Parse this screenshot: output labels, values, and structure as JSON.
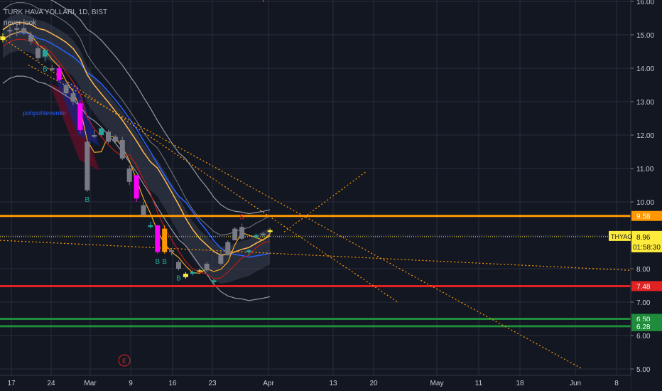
{
  "header": {
    "title": "TURK HAVA YOLLARI, 1D, BIST",
    "subtitle": "never look"
  },
  "annotation_text": "pohpohlevenkn",
  "marker_e": "E",
  "colors": {
    "background": "#131722",
    "grid": "#2a2e39",
    "up": "#26a69a",
    "down": "#787b86",
    "magenta": "#ff00ff",
    "orange": "#ff9800",
    "red_line": "#e02222",
    "green_line": "#1e8c3a",
    "yellow": "#ffeb3b"
  },
  "chart_data": {
    "type": "candlestick",
    "symbol": "THYAO",
    "interval": "1D",
    "exchange": "BIST",
    "y_ticks": [
      "5.00",
      "6.00",
      "7.00",
      "8.00",
      "9.00",
      "10.00",
      "11.00",
      "12.00",
      "13.00",
      "14.00",
      "15.00",
      "16.00"
    ],
    "y_range": [
      5.0,
      16.0
    ],
    "x_ticks": [
      "17",
      "24",
      "Mar",
      "9",
      "16",
      "23",
      "Apr",
      "13",
      "20",
      "May",
      "11",
      "18",
      "Jun",
      "8"
    ],
    "last_price": {
      "symbol": "THYAO",
      "value": "8.96",
      "countdown": "01:58:30"
    },
    "horizontal_levels": [
      {
        "value": 9.58,
        "label": "9.58",
        "color": "#ff9800"
      },
      {
        "value": 7.48,
        "label": "7.48",
        "color": "#e02222"
      },
      {
        "value": 6.5,
        "label": "6.50",
        "color": "#1e8c3a"
      },
      {
        "value": 6.28,
        "label": "6.28",
        "color": "#1e8c3a"
      }
    ],
    "candles": [
      {
        "o": 14.95,
        "h": 15.05,
        "l": 14.78,
        "c": 14.85,
        "color": "yellow"
      },
      {
        "o": 15.1,
        "h": 15.25,
        "l": 14.9,
        "c": 15.15,
        "color": "gray"
      },
      {
        "o": 15.15,
        "h": 15.3,
        "l": 14.95,
        "c": 15.2,
        "color": "gray"
      },
      {
        "o": 15.2,
        "h": 15.3,
        "l": 15.0,
        "c": 15.05,
        "color": "gray"
      },
      {
        "o": 15.0,
        "h": 15.1,
        "l": 14.7,
        "c": 14.8,
        "color": "gray"
      },
      {
        "o": 14.6,
        "h": 14.8,
        "l": 14.2,
        "c": 14.3,
        "color": "gray"
      },
      {
        "o": 14.35,
        "h": 14.6,
        "l": 14.2,
        "c": 14.55,
        "color": "green"
      },
      {
        "o": 14.0,
        "h": 14.1,
        "l": 13.9,
        "c": 13.95,
        "color": "gray"
      },
      {
        "o": 14.0,
        "h": 14.1,
        "l": 13.6,
        "c": 13.65,
        "color": "magenta"
      },
      {
        "o": 13.5,
        "h": 13.55,
        "l": 13.2,
        "c": 13.25,
        "color": "gray"
      },
      {
        "o": 13.25,
        "h": 13.4,
        "l": 12.9,
        "c": 13.0,
        "color": "gray"
      },
      {
        "o": 12.95,
        "h": 13.05,
        "l": 12.05,
        "c": 12.15,
        "color": "magenta"
      },
      {
        "o": 11.8,
        "h": 11.9,
        "l": 10.3,
        "c": 10.35,
        "color": "gray"
      },
      {
        "o": 12.0,
        "h": 12.15,
        "l": 11.9,
        "c": 11.95,
        "color": "gray"
      },
      {
        "o": 12.0,
        "h": 12.25,
        "l": 11.95,
        "c": 12.2,
        "color": "green"
      },
      {
        "o": 12.1,
        "h": 12.15,
        "l": 11.75,
        "c": 11.8,
        "color": "gray"
      },
      {
        "o": 11.95,
        "h": 12.0,
        "l": 11.75,
        "c": 11.8,
        "color": "gray"
      },
      {
        "o": 11.85,
        "h": 11.95,
        "l": 11.25,
        "c": 11.3,
        "color": "gray"
      },
      {
        "o": 11.0,
        "h": 11.1,
        "l": 10.5,
        "c": 10.6,
        "color": "gray"
      },
      {
        "o": 10.8,
        "h": 10.8,
        "l": 10.0,
        "c": 10.1,
        "color": "magenta"
      },
      {
        "o": 9.9,
        "h": 10.0,
        "l": 9.6,
        "c": 9.6,
        "color": "gray"
      },
      {
        "o": 9.3,
        "h": 9.4,
        "l": 9.2,
        "c": 9.25,
        "color": "green"
      },
      {
        "o": 9.3,
        "h": 9.3,
        "l": 8.45,
        "c": 8.5,
        "color": "magenta"
      },
      {
        "o": 9.2,
        "h": 9.3,
        "l": 8.45,
        "c": 8.5,
        "color": "orange"
      },
      {
        "o": 8.55,
        "h": 8.6,
        "l": 8.4,
        "c": 8.5,
        "color": "gray"
      },
      {
        "o": 8.2,
        "h": 8.25,
        "l": 7.95,
        "c": 8.0,
        "color": "gray"
      },
      {
        "o": 7.85,
        "h": 7.9,
        "l": 7.7,
        "c": 7.75,
        "color": "yellow"
      },
      {
        "o": 7.85,
        "h": 7.95,
        "l": 7.8,
        "c": 7.9,
        "color": "green"
      },
      {
        "o": 7.95,
        "h": 8.0,
        "l": 7.9,
        "c": 7.95,
        "color": "yellow"
      },
      {
        "o": 7.95,
        "h": 8.2,
        "l": 7.9,
        "c": 8.15,
        "color": "gray"
      },
      {
        "o": 7.6,
        "h": 7.7,
        "l": 7.55,
        "c": 7.65,
        "color": "green"
      },
      {
        "o": 8.4,
        "h": 8.5,
        "l": 8.1,
        "c": 8.15,
        "color": "gray"
      },
      {
        "o": 8.4,
        "h": 8.85,
        "l": 8.4,
        "c": 8.8,
        "color": "gray"
      },
      {
        "o": 8.85,
        "h": 9.25,
        "l": 8.85,
        "c": 9.2,
        "color": "gray"
      },
      {
        "o": 8.9,
        "h": 9.35,
        "l": 8.85,
        "c": 9.25,
        "color": "gray"
      },
      {
        "o": 8.5,
        "h": 8.6,
        "l": 8.4,
        "c": 8.55,
        "color": "green"
      },
      {
        "o": 8.95,
        "h": 9.05,
        "l": 8.9,
        "c": 9.0,
        "color": "green"
      },
      {
        "o": 9.05,
        "h": 9.1,
        "l": 8.95,
        "c": 9.0,
        "color": "gray"
      },
      {
        "o": 9.1,
        "h": 9.2,
        "l": 9.05,
        "c": 9.15,
        "color": "yellow"
      }
    ],
    "signals": {
      "buy": [
        "B",
        "B",
        "B",
        "B",
        "B"
      ],
      "sell": [
        "S"
      ]
    }
  }
}
